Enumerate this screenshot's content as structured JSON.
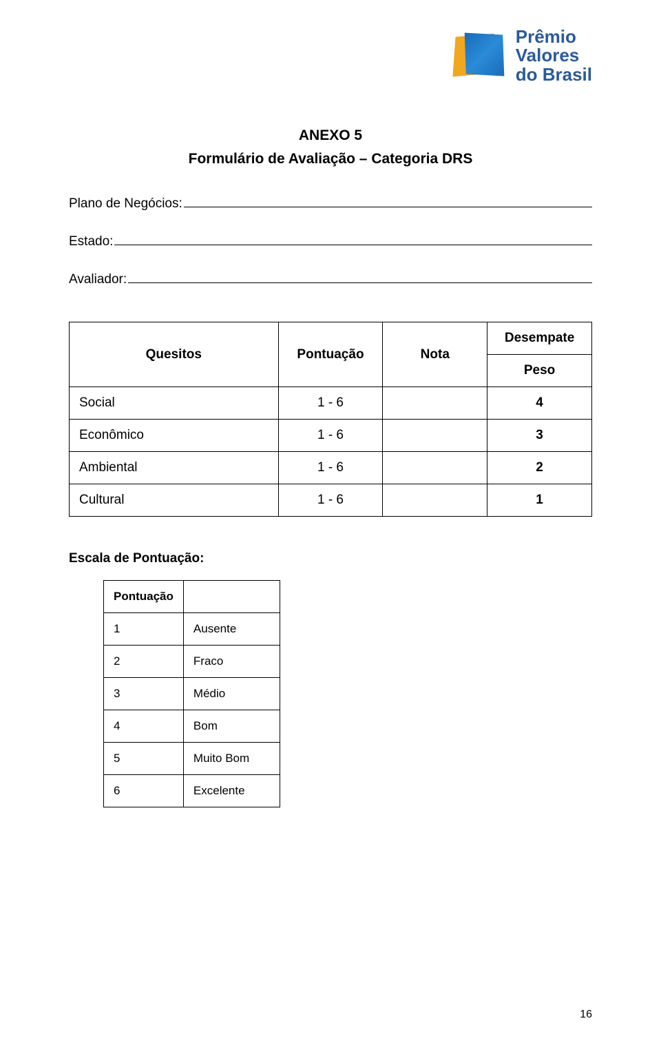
{
  "logo": {
    "line1": "Prêmio",
    "line2": "Valores",
    "line3": "do Brasil"
  },
  "header": {
    "title_line1": "ANEXO 5",
    "title_line2": "Formulário de Avaliação – Categoria DRS"
  },
  "fields": {
    "plano_label": "Plano de Negócios:",
    "estado_label": "Estado:",
    "avaliador_label": "Avaliador:"
  },
  "main_table": {
    "columns": {
      "quesitos": "Quesitos",
      "pontuacao": "Pontuação",
      "nota": "Nota",
      "desempate": "Desempate"
    },
    "peso_label": "Peso",
    "rows": [
      {
        "quesito": "Social",
        "pontuacao": "1 - 6",
        "nota": "",
        "peso": "4"
      },
      {
        "quesito": "Econômico",
        "pontuacao": "1 - 6",
        "nota": "",
        "peso": "3"
      },
      {
        "quesito": "Ambiental",
        "pontuacao": "1 - 6",
        "nota": "",
        "peso": "2"
      },
      {
        "quesito": "Cultural",
        "pontuacao": "1 - 6",
        "nota": "",
        "peso": "1"
      }
    ]
  },
  "scale": {
    "heading": "Escala de Pontuação:",
    "header": "Pontuação",
    "rows": [
      {
        "n": "1",
        "label": "Ausente"
      },
      {
        "n": "2",
        "label": "Fraco"
      },
      {
        "n": "3",
        "label": "Médio"
      },
      {
        "n": "4",
        "label": "Bom"
      },
      {
        "n": "5",
        "label": "Muito Bom"
      },
      {
        "n": "6",
        "label": "Excelente"
      }
    ]
  },
  "page_number": "16",
  "colors": {
    "text": "#000000",
    "background": "#ffffff",
    "border": "#000000",
    "logo_blue": "#2a5a9a",
    "logo_front": "#2a8bd8",
    "logo_back": "#f0a820"
  }
}
